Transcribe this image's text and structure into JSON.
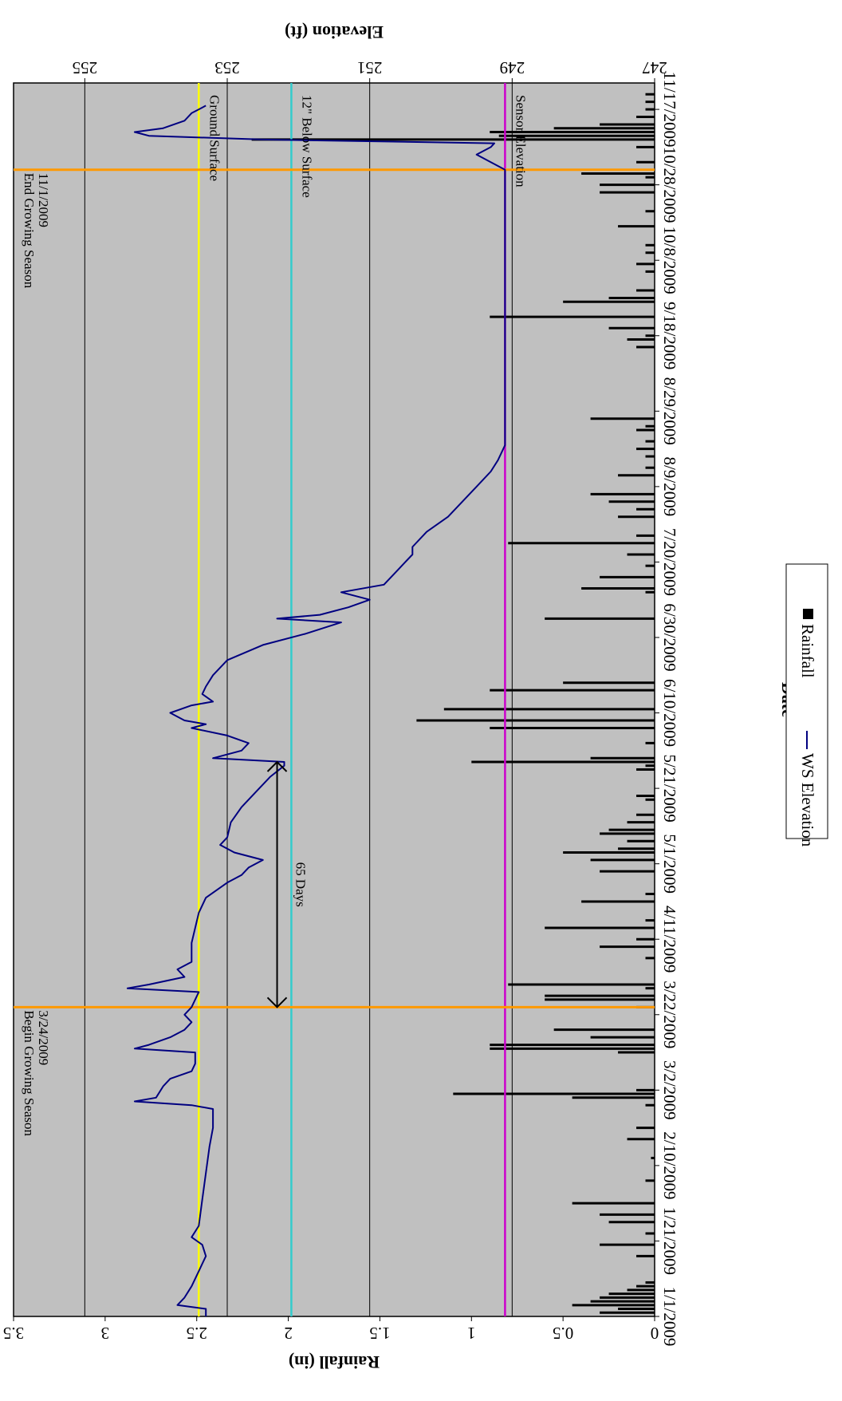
{
  "chart_data": {
    "type": "line",
    "xlabel": "Date",
    "ylabel_left": "Elevation (ft)",
    "ylabel_right": "Rainfall (in)",
    "elevation_range": [
      247,
      256
    ],
    "rainfall_range": [
      0,
      3.5
    ],
    "date_range": [
      "1/1/2009",
      "11/24/2009"
    ],
    "x_ticks": [
      "1/1/2009",
      "1/21/2009",
      "2/10/2009",
      "3/2/2009",
      "3/22/2009",
      "4/11/2009",
      "5/1/2009",
      "5/21/2009",
      "6/10/2009",
      "6/30/2009",
      "7/20/2009",
      "8/9/2009",
      "8/29/2009",
      "9/18/2009",
      "10/8/2009",
      "10/28/2009",
      "11/17/2009"
    ],
    "elevation_ticks": [
      "247",
      "249",
      "251",
      "253",
      "255"
    ],
    "rainfall_ticks": [
      "0",
      "0.5",
      "1",
      "1.5",
      "2",
      "2.5",
      "3",
      "3.5"
    ],
    "grid": true,
    "legend_position": "right",
    "legend": {
      "rainfall": "Rainfall",
      "ws": "WS Elevation"
    },
    "colors": {
      "plot_bg": "#c0c0c0",
      "ws": "#000080",
      "rain": "#000000",
      "ground": "#ffff00",
      "below": "#33cccc",
      "sensor": "#cc00cc",
      "season": "#ff9900"
    },
    "ref_lines": [
      {
        "name": "Ground Surface",
        "elevation": 253.4
      },
      {
        "name": "12\" Below Surface",
        "elevation": 252.1
      },
      {
        "name": "Sensor Elevation",
        "elevation": 249.1
      }
    ],
    "season_lines": [
      {
        "date": "3/24/2009",
        "text1": "Begin Growing Season",
        "text2": "3/24/2009"
      },
      {
        "date": "11/1/2009",
        "text1": "End Growing Season",
        "text2": "11/1/2009"
      }
    ],
    "annotation": {
      "text": "65 Days",
      "start": "3/24/2009",
      "end": "5/28/2009",
      "elevation": 252.3
    },
    "series": [
      {
        "name": "WS Elevation",
        "points": [
          [
            "1/1/2009",
            253.3
          ],
          [
            "1/3/2009",
            253.3
          ],
          [
            "1/4/2009",
            253.7
          ],
          [
            "1/6/2009",
            253.6
          ],
          [
            "1/9/2009",
            253.5
          ],
          [
            "1/13/2009",
            253.4
          ],
          [
            "1/17/2009",
            253.3
          ],
          [
            "1/20/2009",
            253.35
          ],
          [
            "1/22/2009",
            253.5
          ],
          [
            "1/25/2009",
            253.4
          ],
          [
            "2/1/2009",
            253.35
          ],
          [
            "2/8/2009",
            253.3
          ],
          [
            "2/15/2009",
            253.25
          ],
          [
            "2/20/2009",
            253.2
          ],
          [
            "2/25/2009",
            253.2
          ],
          [
            "2/26/2009",
            253.5
          ],
          [
            "2/27/2009",
            254.3
          ],
          [
            "2/28/2009",
            254.0
          ],
          [
            "3/3/2009",
            253.9
          ],
          [
            "3/5/2009",
            253.8
          ],
          [
            "3/7/2009",
            253.5
          ],
          [
            "3/9/2009",
            253.45
          ],
          [
            "3/12/2009",
            253.45
          ],
          [
            "3/13/2009",
            254.3
          ],
          [
            "3/14/2009",
            254.1
          ],
          [
            "3/16/2009",
            253.8
          ],
          [
            "3/18/2009",
            253.6
          ],
          [
            "3/20/2009",
            253.5
          ],
          [
            "3/22/2009",
            253.6
          ],
          [
            "3/24/2009",
            253.5
          ],
          [
            "3/28/2009",
            253.4
          ],
          [
            "3/29/2009",
            254.4
          ],
          [
            "3/30/2009",
            254.1
          ],
          [
            "4/1/2009",
            253.6
          ],
          [
            "4/3/2009",
            253.7
          ],
          [
            "4/5/2009",
            253.5
          ],
          [
            "4/7/2009",
            253.5
          ],
          [
            "4/10/2009",
            253.5
          ],
          [
            "4/14/2009",
            253.45
          ],
          [
            "4/18/2009",
            253.4
          ],
          [
            "4/22/2009",
            253.3
          ],
          [
            "4/26/2009",
            253.0
          ],
          [
            "4/28/2009",
            252.8
          ],
          [
            "4/30/2009",
            252.7
          ],
          [
            "5/2/2009",
            252.5
          ],
          [
            "5/4/2009",
            252.9
          ],
          [
            "5/6/2009",
            253.1
          ],
          [
            "5/8/2009",
            253.0
          ],
          [
            "5/12/2009",
            252.95
          ],
          [
            "5/16/2009",
            252.8
          ],
          [
            "5/20/2009",
            252.6
          ],
          [
            "5/24/2009",
            252.4
          ],
          [
            "5/27/2009",
            252.2
          ],
          [
            "5/28/2009",
            252.2
          ],
          [
            "5/29/2009",
            253.2
          ],
          [
            "5/31/2009",
            252.8
          ],
          [
            "6/2/2009",
            252.7
          ],
          [
            "6/4/2009",
            253.0
          ],
          [
            "6/6/2009",
            253.5
          ],
          [
            "6/7/2009",
            253.3
          ],
          [
            "6/8/2009",
            253.6
          ],
          [
            "6/10/2009",
            253.8
          ],
          [
            "6/12/2009",
            253.5
          ],
          [
            "6/13/2009",
            253.2
          ],
          [
            "6/15/2009",
            253.35
          ],
          [
            "6/17/2009",
            253.3
          ],
          [
            "6/20/2009",
            253.2
          ],
          [
            "6/24/2009",
            253.0
          ],
          [
            "6/28/2009",
            252.5
          ],
          [
            "7/1/2009",
            251.9
          ],
          [
            "7/4/2009",
            251.4
          ],
          [
            "7/5/2009",
            252.3
          ],
          [
            "7/6/2009",
            251.7
          ],
          [
            "7/8/2009",
            251.3
          ],
          [
            "7/10/2009",
            251.0
          ],
          [
            "7/12/2009",
            251.4
          ],
          [
            "7/14/2009",
            250.8
          ],
          [
            "7/16/2009",
            250.7
          ],
          [
            "7/18/2009",
            250.6
          ],
          [
            "7/20/2009",
            250.5
          ],
          [
            "7/22/2009",
            250.4
          ],
          [
            "7/24/2009",
            250.4
          ],
          [
            "7/28/2009",
            250.2
          ],
          [
            "8/1/2009",
            249.9
          ],
          [
            "8/5/2009",
            249.7
          ],
          [
            "8/9/2009",
            249.5
          ],
          [
            "8/13/2009",
            249.3
          ],
          [
            "8/16/2009",
            249.2
          ],
          [
            "8/20/2009",
            249.1
          ],
          [
            "9/1/2009",
            249.1
          ],
          [
            "9/15/2009",
            249.1
          ],
          [
            "10/1/2009",
            249.1
          ],
          [
            "10/20/2009",
            249.1
          ],
          [
            "10/28/2009",
            249.1
          ],
          [
            "11/1/2009",
            249.1
          ],
          [
            "11/3/2009",
            249.3
          ],
          [
            "11/5/2009",
            249.5
          ],
          [
            "11/7/2009",
            249.3
          ],
          [
            "11/8/2009",
            249.25
          ],
          [
            "11/9/2009",
            252.5
          ],
          [
            "11/10/2009",
            254.1
          ],
          [
            "11/11/2009",
            254.3
          ],
          [
            "11/12/2009",
            253.9
          ],
          [
            "11/14/2009",
            253.6
          ],
          [
            "11/16/2009",
            253.5
          ],
          [
            "11/17/2009",
            253.4
          ],
          [
            "11/18/2009",
            253.3
          ]
        ]
      },
      {
        "name": "Rainfall",
        "bars": [
          [
            "1/2/2009",
            0.3
          ],
          [
            "1/3/2009",
            0.2
          ],
          [
            "1/4/2009",
            0.45
          ],
          [
            "1/5/2009",
            0.35
          ],
          [
            "1/6/2009",
            0.3
          ],
          [
            "1/7/2009",
            0.25
          ],
          [
            "1/8/2009",
            0.15
          ],
          [
            "1/9/2009",
            0.1
          ],
          [
            "1/10/2009",
            0.05
          ],
          [
            "1/17/2009",
            0.1
          ],
          [
            "1/20/2009",
            0.3
          ],
          [
            "1/23/2009",
            0.05
          ],
          [
            "1/26/2009",
            0.25
          ],
          [
            "1/28/2009",
            0.3
          ],
          [
            "1/31/2009",
            0.45
          ],
          [
            "2/6/2009",
            0.05
          ],
          [
            "2/12/2009",
            0.02
          ],
          [
            "2/17/2009",
            0.15
          ],
          [
            "2/20/2009",
            0.1
          ],
          [
            "2/26/2009",
            0.05
          ],
          [
            "2/28/2009",
            0.45
          ],
          [
            "3/1/2009",
            1.1
          ],
          [
            "3/2/2009",
            0.1
          ],
          [
            "3/12/2009",
            0.2
          ],
          [
            "3/13/2009",
            0.9
          ],
          [
            "3/14/2009",
            0.9
          ],
          [
            "3/16/2009",
            0.35
          ],
          [
            "3/18/2009",
            0.55
          ],
          [
            "3/24/2009",
            0.1
          ],
          [
            "3/26/2009",
            0.6
          ],
          [
            "3/27/2009",
            0.6
          ],
          [
            "3/29/2009",
            0.05
          ],
          [
            "3/30/2009",
            0.8
          ],
          [
            "4/6/2009",
            0.05
          ],
          [
            "4/9/2009",
            0.3
          ],
          [
            "4/11/2009",
            0.1
          ],
          [
            "4/14/2009",
            0.6
          ],
          [
            "4/16/2009",
            0.05
          ],
          [
            "4/21/2009",
            0.4
          ],
          [
            "4/23/2009",
            0.05
          ],
          [
            "4/29/2009",
            0.3
          ],
          [
            "5/2/2009",
            0.35
          ],
          [
            "5/4/2009",
            0.5
          ],
          [
            "5/5/2009",
            0.2
          ],
          [
            "5/7/2009",
            0.15
          ],
          [
            "5/9/2009",
            0.3
          ],
          [
            "5/10/2009",
            0.25
          ],
          [
            "5/12/2009",
            0.15
          ],
          [
            "5/14/2009",
            0.1
          ],
          [
            "5/18/2009",
            0.05
          ],
          [
            "5/19/2009",
            0.1
          ],
          [
            "5/26/2009",
            0.1
          ],
          [
            "5/27/2009",
            0.05
          ],
          [
            "5/28/2009",
            1.0
          ],
          [
            "5/29/2009",
            0.35
          ],
          [
            "6/2/2009",
            0.05
          ],
          [
            "6/6/2009",
            0.9
          ],
          [
            "6/8/2009",
            1.3
          ],
          [
            "6/11/2009",
            1.15
          ],
          [
            "6/16/2009",
            0.9
          ],
          [
            "6/18/2009",
            0.5
          ],
          [
            "7/5/2009",
            0.6
          ],
          [
            "7/12/2009",
            0.05
          ],
          [
            "7/13/2009",
            0.4
          ],
          [
            "7/16/2009",
            0.3
          ],
          [
            "7/19/2009",
            0.05
          ],
          [
            "7/22/2009",
            0.15
          ],
          [
            "7/25/2009",
            0.8
          ],
          [
            "7/27/2009",
            0.1
          ],
          [
            "8/1/2009",
            0.2
          ],
          [
            "8/3/2009",
            0.1
          ],
          [
            "8/5/2009",
            0.25
          ],
          [
            "8/7/2009",
            0.35
          ],
          [
            "8/12/2009",
            0.2
          ],
          [
            "8/14/2009",
            0.05
          ],
          [
            "8/17/2009",
            0.05
          ],
          [
            "8/19/2009",
            0.1
          ],
          [
            "8/21/2009",
            0.05
          ],
          [
            "8/24/2009",
            0.1
          ],
          [
            "8/25/2009",
            0.05
          ],
          [
            "8/27/2009",
            0.35
          ],
          [
            "9/15/2009",
            0.1
          ],
          [
            "9/17/2009",
            0.15
          ],
          [
            "9/18/2009",
            0.05
          ],
          [
            "9/20/2009",
            0.25
          ],
          [
            "9/23/2009",
            0.9
          ],
          [
            "9/27/2009",
            0.5
          ],
          [
            "9/28/2009",
            0.25
          ],
          [
            "9/30/2009",
            0.1
          ],
          [
            "10/5/2009",
            0.05
          ],
          [
            "10/7/2009",
            0.1
          ],
          [
            "10/10/2009",
            0.05
          ],
          [
            "10/12/2009",
            0.05
          ],
          [
            "10/17/2009",
            0.2
          ],
          [
            "10/21/2009",
            0.05
          ],
          [
            "10/26/2009",
            0.3
          ],
          [
            "10/28/2009",
            0.3
          ],
          [
            "10/30/2009",
            0.05
          ],
          [
            "10/31/2009",
            0.4
          ],
          [
            "11/3/2009",
            0.1
          ],
          [
            "11/7/2009",
            0.1
          ],
          [
            "11/9/2009",
            2.2
          ],
          [
            "11/10/2009",
            0.85
          ],
          [
            "11/11/2009",
            0.9
          ],
          [
            "11/12/2009",
            0.55
          ],
          [
            "11/13/2009",
            0.3
          ],
          [
            "11/15/2009",
            0.1
          ],
          [
            "11/17/2009",
            0.05
          ],
          [
            "11/19/2009",
            0.05
          ],
          [
            "11/21/2009",
            0.05
          ]
        ]
      }
    ]
  }
}
